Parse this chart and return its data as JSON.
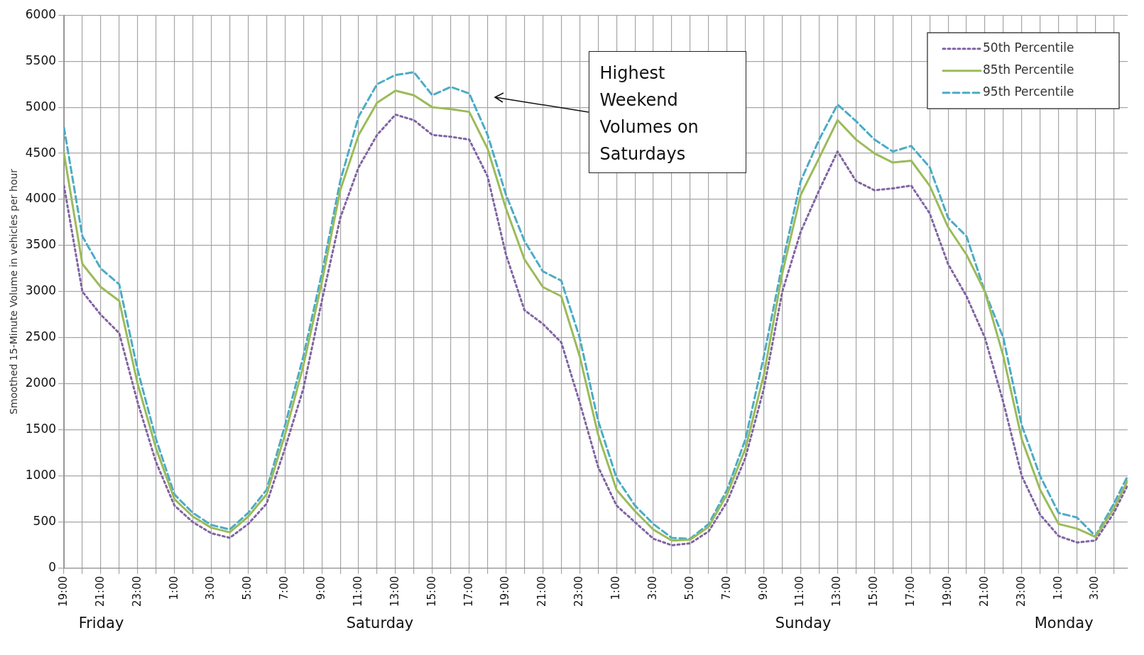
{
  "chart_data": {
    "type": "line",
    "ylabel": "Smoothed 15-Minute Volume in vehicles per hour",
    "x": [
      "--03-13T19:00",
      "--03-13T20:00",
      "--03-13T21:00",
      "--03-13T22:00",
      "--03-13T23:00",
      "--03-14T00:00",
      "--03-14T01:00",
      "--03-14T02:00",
      "--03-14T03:00",
      "--03-14T04:00",
      "--03-14T05:00",
      "--03-14T06:00",
      "--03-14T07:00",
      "--03-14T08:00",
      "--03-14T09:00",
      "--03-14T10:00",
      "--03-14T11:00",
      "--03-14T12:00",
      "--03-14T13:00",
      "--03-14T14:00",
      "--03-14T15:00",
      "--03-14T16:00",
      "--03-14T17:00",
      "--03-14T18:00",
      "--03-14T19:00",
      "--03-14T20:00",
      "--03-14T21:00",
      "--03-14T22:00",
      "--03-14T23:00",
      "--03-15T00:00",
      "--03-15T01:00",
      "--03-15T02:00",
      "--03-15T03:00",
      "--03-15T04:00",
      "--03-15T05:00",
      "--03-15T06:00",
      "--03-15T07:00",
      "--03-15T08:00",
      "--03-15T09:00",
      "--03-15T10:00",
      "--03-15T11:00",
      "--03-15T12:00",
      "--03-15T13:00",
      "--03-15T14:00",
      "--03-15T15:00",
      "--03-15T16:00",
      "--03-15T17:00",
      "--03-15T18:00",
      "--03-15T19:00",
      "--03-15T20:00",
      "--03-15T21:00",
      "--03-15T22:00",
      "--03-15T23:00",
      "--03-16T00:00",
      "--03-16T01:00",
      "--03-16T02:00",
      "--03-16T03:00",
      "--03-16T04:00",
      "--03-16T04:45"
    ],
    "series": [
      {
        "name": "50th Percentile",
        "color": "#8064a2",
        "line_style": "dotted",
        "values": [
          4150,
          3000,
          2750,
          2550,
          1800,
          1150,
          680,
          500,
          380,
          330,
          480,
          700,
          1300,
          1950,
          2900,
          3800,
          4350,
          4700,
          4920,
          4860,
          4700,
          4680,
          4650,
          4250,
          3400,
          2800,
          2650,
          2450,
          1800,
          1100,
          680,
          500,
          320,
          250,
          270,
          400,
          720,
          1200,
          1950,
          3000,
          3650,
          4100,
          4520,
          4200,
          4100,
          4120,
          4150,
          3850,
          3300,
          2950,
          2500,
          1800,
          1000,
          580,
          350,
          280,
          300,
          600,
          900
        ]
      },
      {
        "name": "85th Percentile",
        "color": "#9bbb59",
        "line_style": "solid",
        "values": [
          4500,
          3300,
          3050,
          2900,
          2000,
          1300,
          750,
          560,
          440,
          390,
          560,
          800,
          1450,
          2200,
          3100,
          4100,
          4700,
          5050,
          5180,
          5130,
          5000,
          4980,
          4950,
          4550,
          3900,
          3350,
          3050,
          2950,
          2300,
          1450,
          850,
          620,
          420,
          300,
          310,
          450,
          800,
          1300,
          2100,
          3200,
          4050,
          4450,
          4860,
          4650,
          4500,
          4400,
          4420,
          4150,
          3700,
          3400,
          3000,
          2300,
          1400,
          850,
          480,
          430,
          340,
          650,
          950
        ]
      },
      {
        "name": "95th Percentile",
        "color": "#4bacc6",
        "line_style": "dashed",
        "values": [
          4780,
          3600,
          3250,
          3080,
          2150,
          1400,
          800,
          600,
          470,
          420,
          600,
          850,
          1550,
          2300,
          3200,
          4200,
          4900,
          5250,
          5350,
          5380,
          5130,
          5220,
          5150,
          4700,
          4050,
          3550,
          3220,
          3120,
          2500,
          1600,
          980,
          680,
          480,
          330,
          320,
          480,
          850,
          1400,
          2300,
          3300,
          4200,
          4650,
          5030,
          4850,
          4650,
          4520,
          4580,
          4350,
          3800,
          3600,
          3000,
          2500,
          1550,
          1000,
          600,
          550,
          350,
          700,
          1000
        ]
      }
    ],
    "xlim": [
      "--03-13T19:00",
      "--03-16T04:45"
    ],
    "xticks": [
      {
        "value": "--03-13T19:00",
        "label": "19:00"
      },
      {
        "value": "--03-13T20:00",
        "label": null
      },
      {
        "value": "--03-13T21:00",
        "label": "21:00"
      },
      {
        "value": "--03-13T22:00",
        "label": null
      },
      {
        "value": "--03-13T23:00",
        "label": "23:00"
      },
      {
        "value": "--03-14T00:00",
        "label": null
      },
      {
        "value": "--03-14T01:00",
        "label": "1:00"
      },
      {
        "value": "--03-14T02:00",
        "label": null
      },
      {
        "value": "--03-14T03:00",
        "label": "3:00"
      },
      {
        "value": "--03-14T04:00",
        "label": null
      },
      {
        "value": "--03-14T05:00",
        "label": "5:00"
      },
      {
        "value": "--03-14T06:00",
        "label": null
      },
      {
        "value": "--03-14T07:00",
        "label": "7:00"
      },
      {
        "value": "--03-14T08:00",
        "label": null
      },
      {
        "value": "--03-14T09:00",
        "label": "9:00"
      },
      {
        "value": "--03-14T10:00",
        "label": null
      },
      {
        "value": "--03-14T11:00",
        "label": "11:00"
      },
      {
        "value": "--03-14T12:00",
        "label": null
      },
      {
        "value": "--03-14T13:00",
        "label": "13:00"
      },
      {
        "value": "--03-14T14:00",
        "label": null
      },
      {
        "value": "--03-14T15:00",
        "label": "15:00"
      },
      {
        "value": "--03-14T16:00",
        "label": null
      },
      {
        "value": "--03-14T17:00",
        "label": "17:00"
      },
      {
        "value": "--03-14T18:00",
        "label": null
      },
      {
        "value": "--03-14T19:00",
        "label": "19:00"
      },
      {
        "value": "--03-14T20:00",
        "label": null
      },
      {
        "value": "--03-14T21:00",
        "label": "21:00"
      },
      {
        "value": "--03-14T22:00",
        "label": null
      },
      {
        "value": "--03-14T23:00",
        "label": "23:00"
      },
      {
        "value": "--03-15T00:00",
        "label": null
      },
      {
        "value": "--03-15T01:00",
        "label": "1:00"
      },
      {
        "value": "--03-15T02:00",
        "label": null
      },
      {
        "value": "--03-15T03:00",
        "label": "3:00"
      },
      {
        "value": "--03-15T04:00",
        "label": null
      },
      {
        "value": "--03-15T05:00",
        "label": "5:00"
      },
      {
        "value": "--03-15T06:00",
        "label": null
      },
      {
        "value": "--03-15T07:00",
        "label": "7:00"
      },
      {
        "value": "--03-15T08:00",
        "label": null
      },
      {
        "value": "--03-15T09:00",
        "label": "9:00"
      },
      {
        "value": "--03-15T10:00",
        "label": null
      },
      {
        "value": "--03-15T11:00",
        "label": "11:00"
      },
      {
        "value": "--03-15T12:00",
        "label": null
      },
      {
        "value": "--03-15T13:00",
        "label": "13:00"
      },
      {
        "value": "--03-15T14:00",
        "label": null
      },
      {
        "value": "--03-15T15:00",
        "label": "15:00"
      },
      {
        "value": "--03-15T16:00",
        "label": null
      },
      {
        "value": "--03-15T17:00",
        "label": "17:00"
      },
      {
        "value": "--03-15T18:00",
        "label": null
      },
      {
        "value": "--03-15T19:00",
        "label": "19:00"
      },
      {
        "value": "--03-15T20:00",
        "label": null
      },
      {
        "value": "--03-15T21:00",
        "label": "21:00"
      },
      {
        "value": "--03-15T22:00",
        "label": null
      },
      {
        "value": "--03-15T23:00",
        "label": "23:00"
      },
      {
        "value": "--03-16T00:00",
        "label": null
      },
      {
        "value": "--03-16T01:00",
        "label": "1:00"
      },
      {
        "value": "--03-16T02:00",
        "label": null
      },
      {
        "value": "--03-16T03:00",
        "label": "3:00"
      },
      {
        "value": "--03-16T04:00",
        "label": null
      }
    ],
    "ylim": [
      0,
      6000
    ],
    "yticks": [
      0,
      500,
      1000,
      1500,
      2000,
      2500,
      3000,
      3500,
      4000,
      4500,
      5000,
      5500,
      6000
    ],
    "grid": true,
    "legend": "top right",
    "marker": "none",
    "annotations": [
      "Friday",
      "Saturday",
      "Sunday",
      "Monday",
      "Highest Weekend Volumes on Saturdays"
    ]
  }
}
